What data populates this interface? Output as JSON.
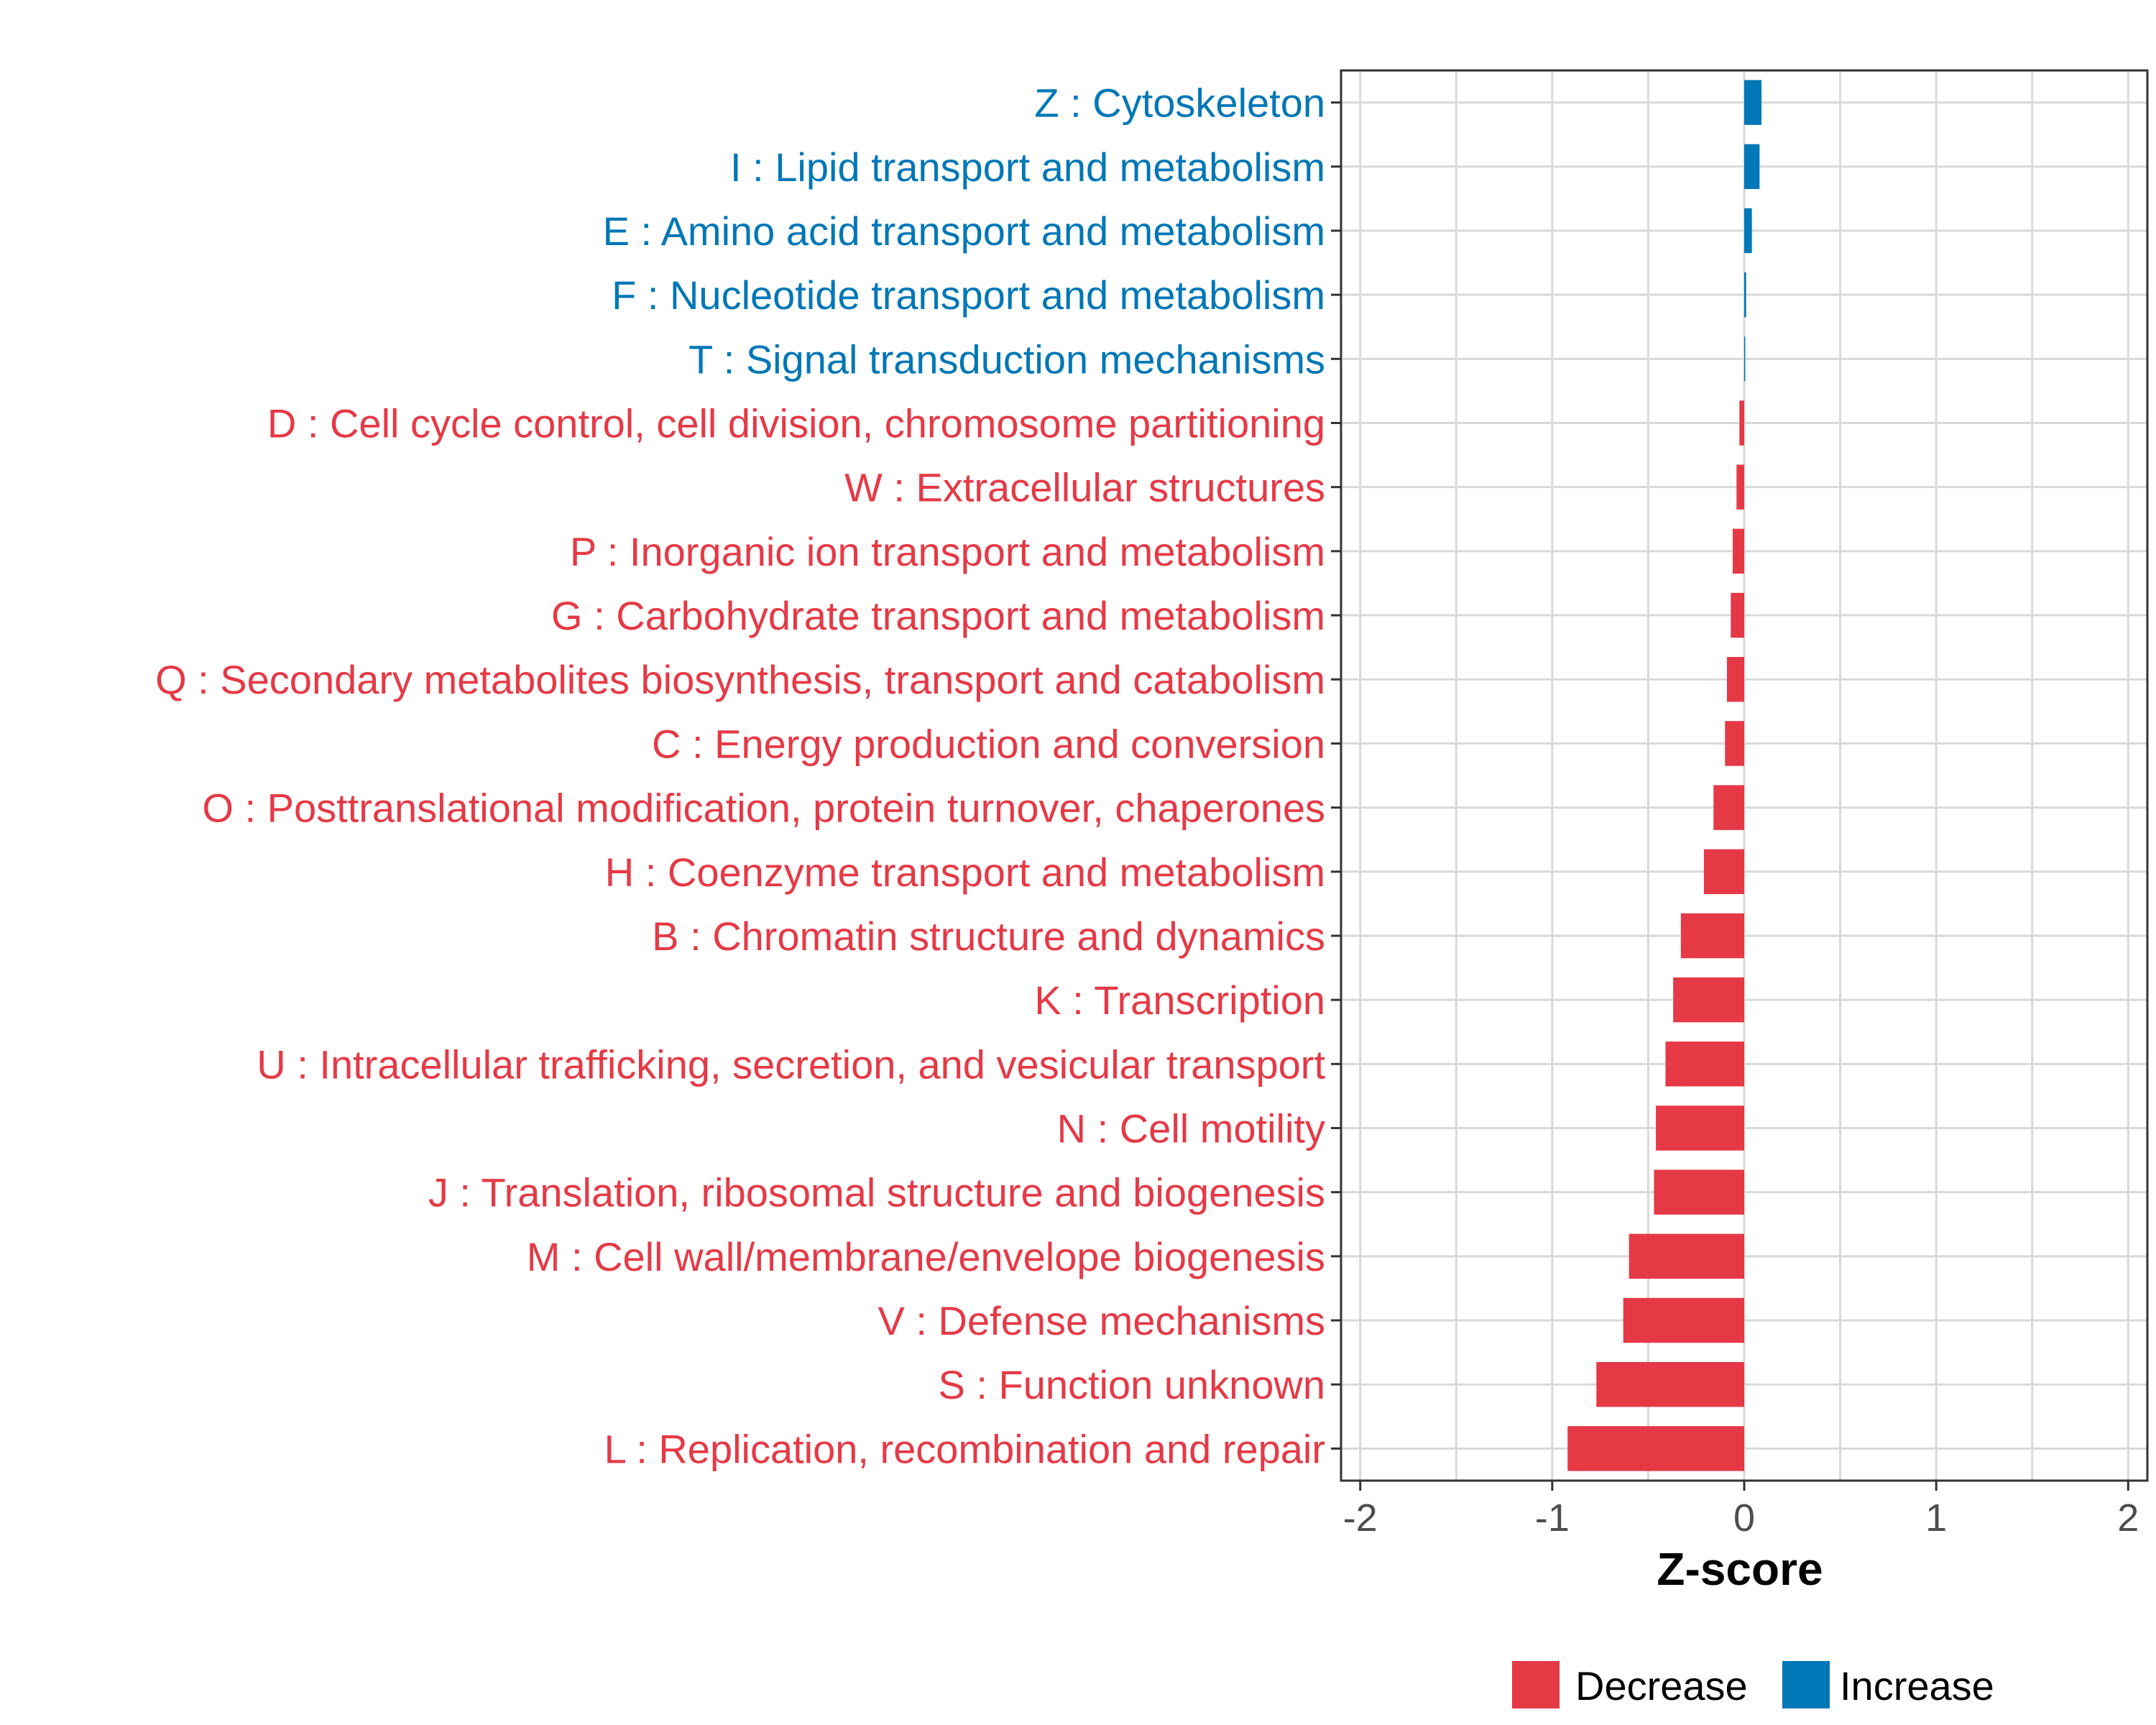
{
  "chart_data": {
    "type": "bar",
    "orientation": "horizontal",
    "title": "",
    "xlabel": "Z-score",
    "ylabel": "",
    "xlim": [
      -2.1,
      2.1
    ],
    "xticks": [
      -2,
      -1,
      0,
      1,
      2
    ],
    "xtick_labels": [
      "-2",
      "-1",
      "0",
      "1",
      "2"
    ],
    "grid": true,
    "legend_position": "bottom",
    "colors": {
      "Decrease": "#E63946",
      "Increase": "#0077B6"
    },
    "legend": [
      {
        "key": "Decrease",
        "label": "Decrease",
        "color": "#E63946"
      },
      {
        "key": "Increase",
        "label": "Increase",
        "color": "#0077B6"
      }
    ],
    "categories": [
      "Z : Cytoskeleton",
      "I : Lipid transport and metabolism",
      "E : Amino acid transport and metabolism",
      "F : Nucleotide transport and metabolism",
      "T : Signal transduction mechanisms",
      "D : Cell cycle control, cell division, chromosome partitioning",
      "W : Extracellular structures",
      "P : Inorganic ion transport and metabolism",
      "G : Carbohydrate transport and metabolism",
      "Q : Secondary metabolites biosynthesis, transport and catabolism",
      "C : Energy production and conversion",
      "O : Posttranslational modification, protein turnover, chaperones",
      "H : Coenzyme transport and metabolism",
      "B : Chromatin structure and dynamics",
      "K : Transcription",
      "U : Intracellular trafficking, secretion, and vesicular transport",
      "N : Cell motility",
      "J : Translation, ribosomal structure and biogenesis",
      "M : Cell wall/membrane/envelope biogenesis",
      "V : Defense mechanisms",
      "S : Function unknown",
      "L : Replication, recombination and repair"
    ],
    "values": [
      0.09,
      0.08,
      0.04,
      0.01,
      0.003,
      -0.025,
      -0.04,
      -0.06,
      -0.07,
      -0.09,
      -0.1,
      -0.16,
      -0.21,
      -0.33,
      -0.37,
      -0.41,
      -0.46,
      -0.47,
      -0.6,
      -0.63,
      -0.77,
      -0.92
    ],
    "groups": [
      "Increase",
      "Increase",
      "Increase",
      "Increase",
      "Increase",
      "Decrease",
      "Decrease",
      "Decrease",
      "Decrease",
      "Decrease",
      "Decrease",
      "Decrease",
      "Decrease",
      "Decrease",
      "Decrease",
      "Decrease",
      "Decrease",
      "Decrease",
      "Decrease",
      "Decrease",
      "Decrease",
      "Decrease"
    ]
  }
}
